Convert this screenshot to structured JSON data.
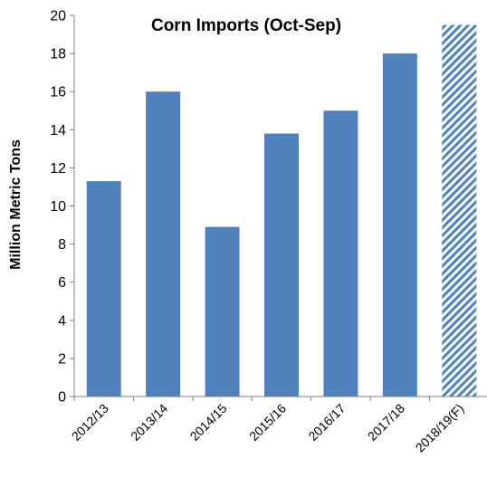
{
  "chart_data": {
    "type": "bar",
    "title": "Corn Imports (Oct-Sep)",
    "ylabel": "Million Metric Tons",
    "xlabel": "",
    "categories": [
      "2012/13",
      "2013/14",
      "2014/15",
      "2015/16",
      "2016/17",
      "2017/18",
      "2018/19(F)"
    ],
    "values": [
      11.3,
      16.0,
      8.9,
      13.8,
      15.0,
      18.0,
      19.5
    ],
    "forecast_index": 6,
    "ylim": [
      0,
      20
    ],
    "yticks": [
      0,
      2,
      4,
      6,
      8,
      10,
      12,
      14,
      16,
      18,
      20
    ],
    "grid": false,
    "legend": "none",
    "colors": {
      "bar": "#4f81bd",
      "forecast_hatch": "#4f81bd",
      "axis": "#808080"
    }
  }
}
